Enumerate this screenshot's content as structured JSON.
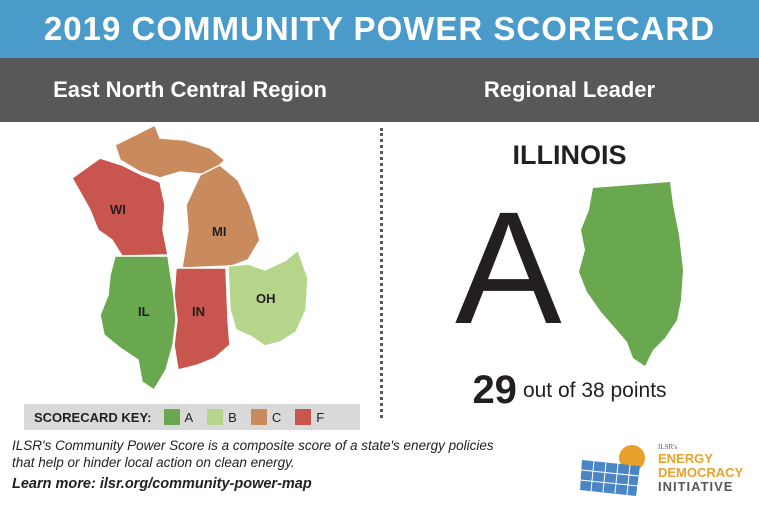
{
  "title": "2019 COMMUNITY POWER SCORECARD",
  "region": "East North Central Region",
  "leader_heading": "Regional Leader",
  "leader": {
    "state": "ILLINOIS",
    "grade": "A",
    "points": "29",
    "points_suffix": "out of 38 points"
  },
  "states": [
    {
      "abbr": "WI",
      "grade": "F",
      "color": "#c8554e"
    },
    {
      "abbr": "MI",
      "grade": "C",
      "color": "#c98a5e"
    },
    {
      "abbr": "IL",
      "grade": "A",
      "color": "#6aa84f"
    },
    {
      "abbr": "IN",
      "grade": "F",
      "color": "#c8554e"
    },
    {
      "abbr": "OH",
      "grade": "B",
      "color": "#b5d68a"
    }
  ],
  "key": {
    "title": "SCORECARD KEY:",
    "items": [
      {
        "grade": "A",
        "color": "#6aa84f"
      },
      {
        "grade": "B",
        "color": "#b5d68a"
      },
      {
        "grade": "C",
        "color": "#c98a5e"
      },
      {
        "grade": "F",
        "color": "#c8554e"
      }
    ]
  },
  "description": "ILSR's Community Power Score is a composite score of a state's energy policies that help or hinder local action on clean energy.",
  "learn_more": "Learn more: ilsr.org/community-power-map",
  "logo": {
    "small": "ILSR's",
    "line1": "ENERGY",
    "line2": "DEMOCRACY",
    "line3": "INITIATIVE"
  }
}
